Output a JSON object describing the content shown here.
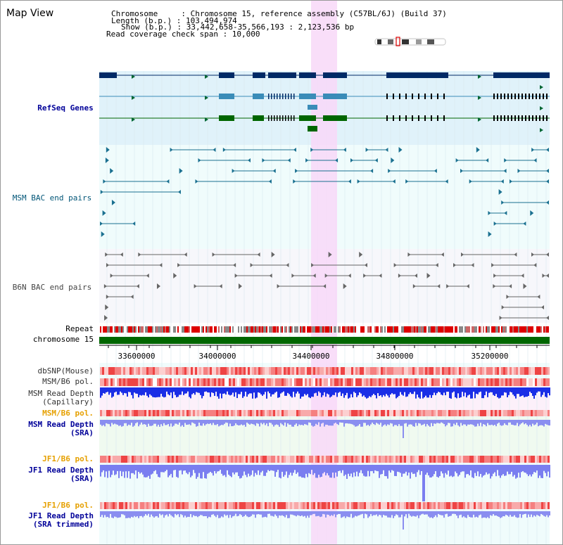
{
  "title": "Map View",
  "info": {
    "chromosome": "Chromosome     : Chromosome 15, reference assembly (C57BL/6J) (Build 37)",
    "length": "Length (b.p.) : 103,494,974",
    "show": "Show (b.p.) : 33,442,658-35,566,193 : 2,123,536 bp",
    "span": "Read coverage check span : 10,000"
  },
  "tracks": {
    "refseq": "RefSeq Genes",
    "msm_bac": "MSM BAC end pairs",
    "b6n_bac": "B6N BAC end pairs",
    "repeat": "Repeat",
    "chromosome": "chromosome 15",
    "dbsnp": "dbSNP(Mouse)",
    "msm_b6_pol_1": "MSM/B6 pol.",
    "msm_depth_cap_1": "MSM Read Depth",
    "msm_depth_cap_2": "(Capillary)",
    "msm_b6_pol_2": "MSM/B6 pol.",
    "msm_depth_sra_1": "MSM Read Depth",
    "msm_depth_sra_2": "(SRA)",
    "jf1_b6_pol_1": "JF1/B6 pol.",
    "jf1_depth_1": "JF1 Read Depth",
    "jf1_depth_2": "(SRA)",
    "jf1_b6_pol_2": "JF1/B6 pol.",
    "jf1_trim_1": "JF1 Read Depth",
    "jf1_trim_2": "(SRA trimmed)"
  },
  "axis": {
    "ticks": [
      "33600000",
      "34000000",
      "34400000",
      "34800000",
      "35200000"
    ]
  },
  "colors": {
    "refseq_bg": "#e0f2fa",
    "bac_bg": "#f0fcfc",
    "highlight": "#f8d8f8",
    "navy": "#002a66",
    "steel": "#3a8cb8",
    "green": "#006600",
    "chrom_bar": "#006600",
    "label_blue": "#000099",
    "label_orange": "#e6a000",
    "label_teal": "#005577"
  }
}
